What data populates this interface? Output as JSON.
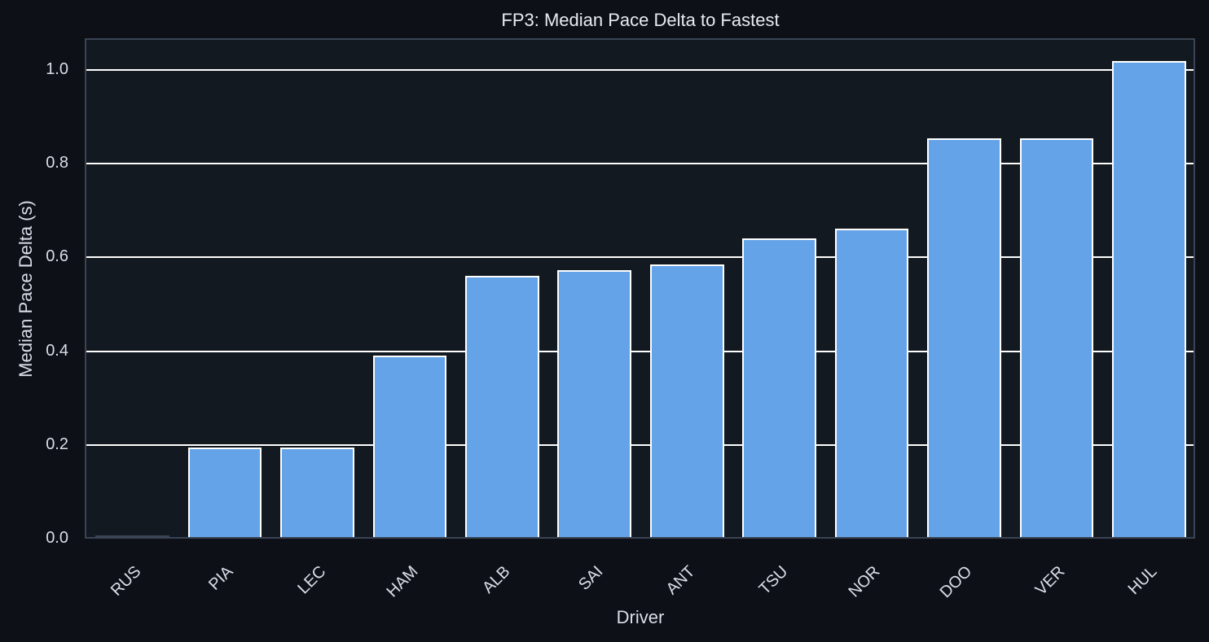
{
  "chart_data": {
    "type": "bar",
    "title": "FP3: Median Pace Delta to Fastest",
    "xlabel": "Driver",
    "ylabel": "Median Pace Delta (s)",
    "categories": [
      "RUS",
      "PIA",
      "LEC",
      "HAM",
      "ALB",
      "SAI",
      "ANT",
      "TSU",
      "NOR",
      "DOO",
      "VER",
      "HUL"
    ],
    "values": [
      0.003,
      0.191,
      0.191,
      0.387,
      0.557,
      0.569,
      0.582,
      0.637,
      0.658,
      0.851,
      0.851,
      1.016
    ],
    "ylim": [
      0,
      1.07
    ],
    "yticks": [
      "0.0",
      "0.2",
      "0.4",
      "0.6",
      "0.8",
      "1.0"
    ],
    "grid": true,
    "legend": null,
    "bar_color": "#65a3e8",
    "background": "#131920"
  }
}
